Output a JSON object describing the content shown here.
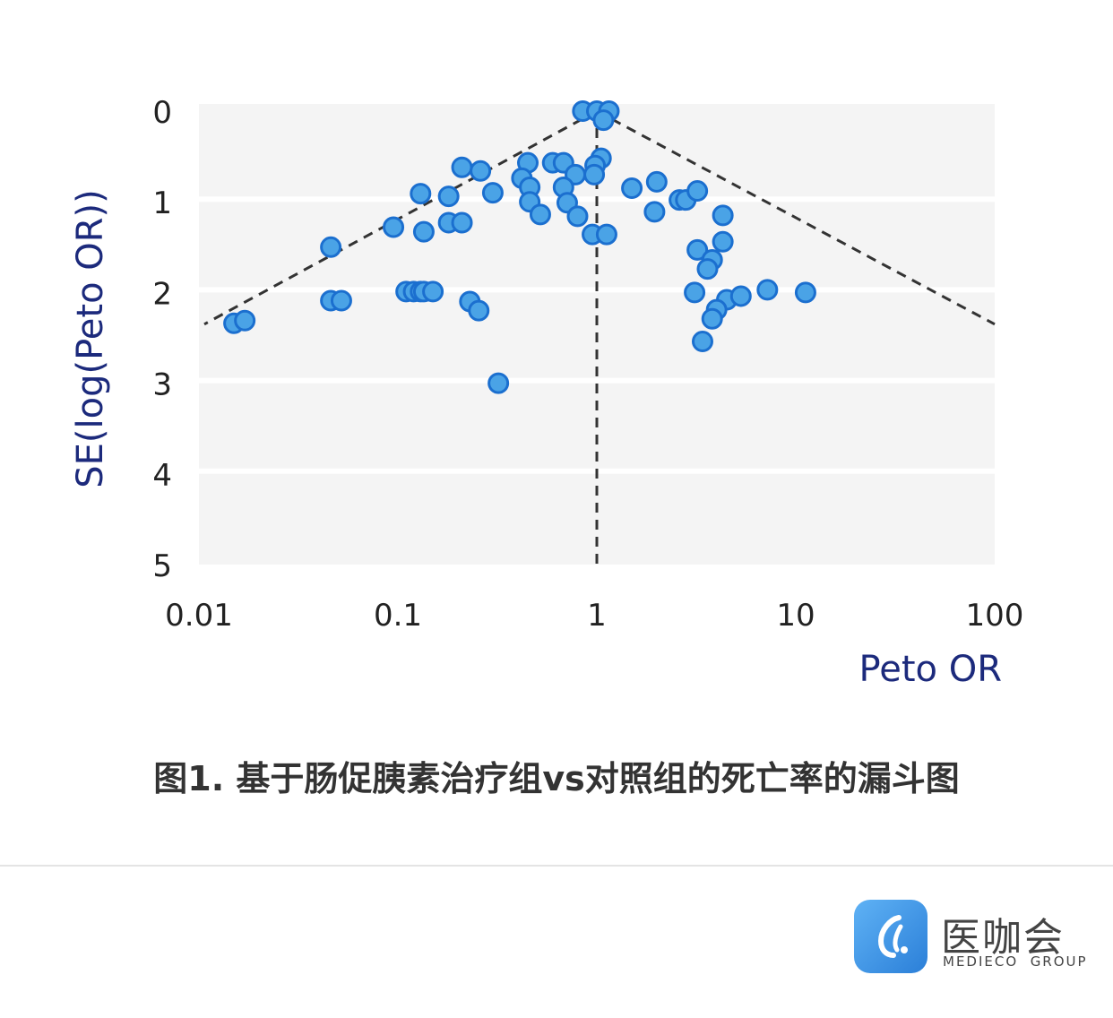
{
  "caption": "图1. 基于肠促胰素治疗组vs对照组的死亡率的漏斗图",
  "brand": {
    "name_cn": "医咖会",
    "name_en": "MEDIECO  GROUP"
  },
  "chart_data": {
    "type": "scatter",
    "title": "",
    "xlabel": "Peto OR",
    "ylabel": "SE(log(Peto OR))",
    "x_scale": "log",
    "xlim": [
      0.01,
      100
    ],
    "ylim": [
      5,
      0
    ],
    "x_ticks": [
      "0.01",
      "0.1",
      "1",
      "10",
      "100"
    ],
    "y_ticks": [
      "0",
      "1",
      "2",
      "3",
      "4",
      "5"
    ],
    "grid": "horizontal",
    "pooled_or": 1.0,
    "colors": {
      "point_fill": "#4aa3e6",
      "point_stroke": "#1b6fcf",
      "panel": "#f4f4f4",
      "funnel": "#333333"
    },
    "points": [
      {
        "x": 0.85,
        "y": 0.0
      },
      {
        "x": 1.0,
        "y": 0.0
      },
      {
        "x": 1.15,
        "y": 0.0
      },
      {
        "x": 1.08,
        "y": 0.1
      },
      {
        "x": 0.45,
        "y": 0.57
      },
      {
        "x": 0.6,
        "y": 0.57
      },
      {
        "x": 0.68,
        "y": 0.57
      },
      {
        "x": 1.05,
        "y": 0.52
      },
      {
        "x": 0.98,
        "y": 0.6
      },
      {
        "x": 0.21,
        "y": 0.62
      },
      {
        "x": 0.26,
        "y": 0.66
      },
      {
        "x": 0.78,
        "y": 0.7
      },
      {
        "x": 0.97,
        "y": 0.7
      },
      {
        "x": 0.42,
        "y": 0.74
      },
      {
        "x": 0.46,
        "y": 0.84
      },
      {
        "x": 0.68,
        "y": 0.84
      },
      {
        "x": 0.3,
        "y": 0.9
      },
      {
        "x": 0.13,
        "y": 0.91
      },
      {
        "x": 0.18,
        "y": 0.94
      },
      {
        "x": 0.46,
        "y": 1.0
      },
      {
        "x": 0.71,
        "y": 1.01
      },
      {
        "x": 0.52,
        "y": 1.14
      },
      {
        "x": 0.8,
        "y": 1.16
      },
      {
        "x": 0.18,
        "y": 1.23
      },
      {
        "x": 0.21,
        "y": 1.23
      },
      {
        "x": 0.095,
        "y": 1.28
      },
      {
        "x": 0.135,
        "y": 1.33
      },
      {
        "x": 0.95,
        "y": 1.36
      },
      {
        "x": 1.12,
        "y": 1.36
      },
      {
        "x": 0.046,
        "y": 1.5
      },
      {
        "x": 1.5,
        "y": 0.85
      },
      {
        "x": 2.0,
        "y": 0.78
      },
      {
        "x": 2.6,
        "y": 0.98
      },
      {
        "x": 2.8,
        "y": 0.98
      },
      {
        "x": 3.2,
        "y": 0.88
      },
      {
        "x": 1.95,
        "y": 1.11
      },
      {
        "x": 4.3,
        "y": 1.15
      },
      {
        "x": 3.2,
        "y": 1.53
      },
      {
        "x": 4.3,
        "y": 1.44
      },
      {
        "x": 3.8,
        "y": 1.64
      },
      {
        "x": 3.6,
        "y": 1.74
      },
      {
        "x": 3.1,
        "y": 2.0
      },
      {
        "x": 7.2,
        "y": 1.97
      },
      {
        "x": 11.2,
        "y": 2.0
      },
      {
        "x": 4.5,
        "y": 2.08
      },
      {
        "x": 5.3,
        "y": 2.04
      },
      {
        "x": 4.0,
        "y": 2.19
      },
      {
        "x": 3.8,
        "y": 2.29
      },
      {
        "x": 3.4,
        "y": 2.54
      },
      {
        "x": 0.015,
        "y": 2.34
      },
      {
        "x": 0.017,
        "y": 2.31
      },
      {
        "x": 0.046,
        "y": 2.09
      },
      {
        "x": 0.052,
        "y": 2.09
      },
      {
        "x": 0.11,
        "y": 1.99
      },
      {
        "x": 0.12,
        "y": 1.99
      },
      {
        "x": 0.13,
        "y": 1.99
      },
      {
        "x": 0.135,
        "y": 1.99
      },
      {
        "x": 0.15,
        "y": 1.99
      },
      {
        "x": 0.23,
        "y": 2.1
      },
      {
        "x": 0.255,
        "y": 2.2
      },
      {
        "x": 0.32,
        "y": 3.0
      }
    ]
  }
}
